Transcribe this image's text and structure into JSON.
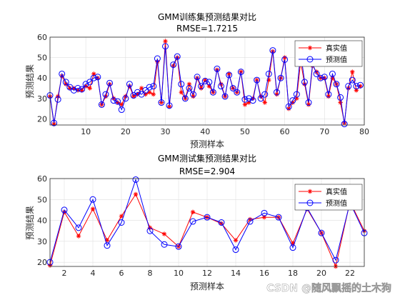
{
  "chart_data": [
    {
      "type": "line",
      "title": "GMM训练集预测结果对比",
      "subtitle": "RMSE=1.7215",
      "xlabel": "预测样本",
      "ylabel": "预测结果",
      "xlim": [
        1,
        80
      ],
      "ylim": [
        17,
        60
      ],
      "xticks": [
        10,
        20,
        30,
        40,
        50,
        60,
        70,
        80
      ],
      "yticks": [
        20,
        30,
        40,
        50,
        60
      ],
      "grid": true,
      "legend_position": "top-right",
      "series": [
        {
          "name": "真实值",
          "color": "#ff0000",
          "marker": "star",
          "values": [
            31,
            17.5,
            31,
            41,
            37,
            35,
            35,
            34,
            34,
            36,
            35,
            42,
            40,
            27,
            31,
            37,
            30,
            28,
            27,
            31,
            36,
            31,
            32,
            35,
            32,
            33,
            32,
            48,
            28,
            58,
            26,
            46,
            50,
            33,
            30,
            37,
            31,
            40,
            35,
            39,
            36,
            33,
            44,
            37,
            31,
            42,
            35,
            33,
            43,
            27,
            28,
            30,
            39,
            31,
            28,
            39,
            53,
            32,
            40,
            50,
            25,
            28,
            30,
            48,
            37,
            27,
            46,
            43,
            40,
            40,
            31,
            40,
            37,
            28,
            18,
            35,
            43,
            34,
            36
          ]
        },
        {
          "name": "预测值",
          "color": "#0000ff",
          "marker": "circle",
          "values": [
            31.5,
            18,
            29.5,
            42,
            38,
            35.5,
            34,
            35,
            34.5,
            37,
            38,
            40,
            40.5,
            27,
            32,
            37.5,
            29,
            28.5,
            24.5,
            30,
            37,
            31.5,
            33,
            32,
            34,
            35.5,
            36,
            49.5,
            28,
            55.5,
            26.5,
            46.5,
            50.5,
            37,
            30,
            35,
            32,
            40.5,
            36,
            38.5,
            38,
            33,
            44.5,
            36,
            31,
            41.5,
            35,
            33,
            43,
            29.5,
            30,
            29,
            39,
            30,
            32,
            42,
            53.5,
            33,
            40,
            49,
            26,
            29,
            32,
            52.5,
            38,
            28,
            47,
            42,
            40,
            40.5,
            32,
            42,
            37,
            30.5,
            17.5,
            36,
            39,
            36,
            36.5
          ]
        }
      ],
      "legend": [
        "真实值",
        "预测值"
      ]
    },
    {
      "type": "line",
      "title": "GMM测试集预测结果对比",
      "subtitle": "RMSE=2.904",
      "xlabel": "预测样本",
      "ylabel": "预测结果",
      "xlim": [
        1,
        23
      ],
      "ylim": [
        18,
        60
      ],
      "xticks": [
        2,
        4,
        6,
        8,
        10,
        12,
        14,
        16,
        18,
        20,
        22
      ],
      "yticks": [
        20,
        30,
        40,
        50,
        60
      ],
      "grid": true,
      "legend_position": "top-right",
      "series": [
        {
          "name": "真实值",
          "color": "#ff0000",
          "marker": "star",
          "values": [
            18.5,
            44,
            32.5,
            45.5,
            30.5,
            42,
            52.5,
            36.5,
            33.5,
            27.5,
            44,
            41.5,
            38.5,
            30.5,
            40.5,
            41.5,
            41.5,
            29,
            45.5,
            34,
            18,
            49,
            35
          ]
        },
        {
          "name": "预测值",
          "color": "#0000ff",
          "marker": "circle",
          "values": [
            20,
            45,
            36.5,
            50,
            28,
            39,
            59.5,
            35,
            28.5,
            27.5,
            39.5,
            41.5,
            39,
            26,
            39.5,
            43.5,
            41.5,
            27,
            46,
            34,
            21,
            48.5,
            34
          ]
        }
      ],
      "legend": [
        "真实值",
        "预测值"
      ]
    }
  ],
  "watermark": "CSDN @随风飘摇的土木狗"
}
